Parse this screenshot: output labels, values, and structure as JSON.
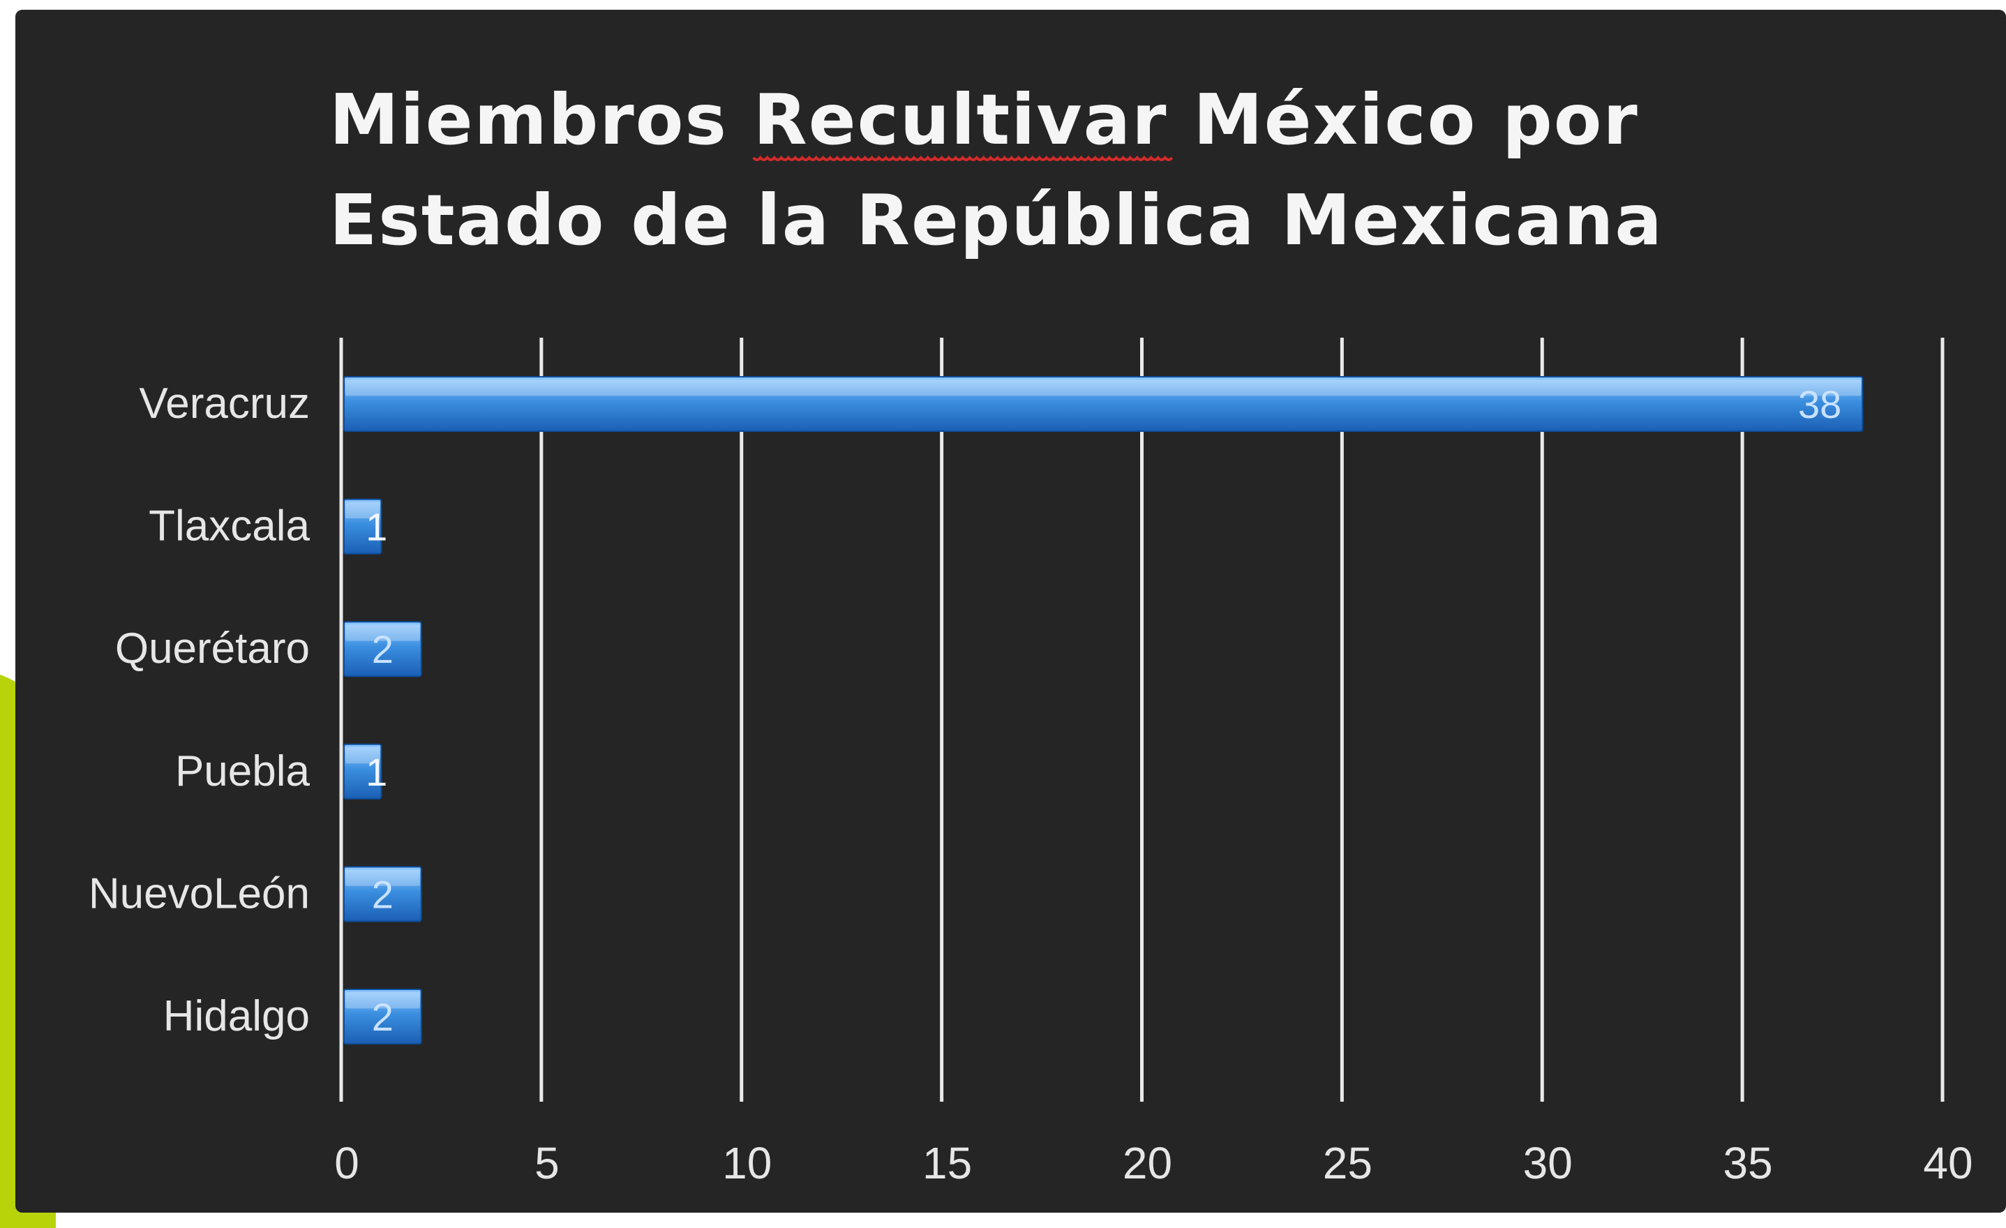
{
  "colors": {
    "panel_background": "#252525",
    "accent": "#b8d30a",
    "bar_top": "#8fc8ff",
    "bar_mid": "#3b8fe0",
    "bar_bottom": "#1b5fb5",
    "text": "#e6e6e6",
    "spellcheck_underline": "#d22b2b"
  },
  "chart_data": {
    "type": "bar",
    "orientation": "horizontal",
    "title_lines": [
      [
        "Miembros ",
        "Recultivar",
        " México por"
      ],
      [
        "Estado de la República Mexicana"
      ]
    ],
    "categories": [
      "Veracruz",
      "Tlaxcala",
      "Querétaro",
      "Puebla",
      "NuevoLeón",
      "Hidalgo"
    ],
    "values": [
      38,
      1,
      2,
      1,
      2,
      2
    ],
    "data_labels": [
      "38",
      "1",
      "2",
      "1",
      "2",
      "2"
    ],
    "xlim": [
      0,
      40
    ],
    "x_ticks": [
      "0",
      "5",
      "10",
      "15",
      "20",
      "25",
      "30",
      "35",
      "40"
    ],
    "grid": true,
    "legend": "none"
  }
}
